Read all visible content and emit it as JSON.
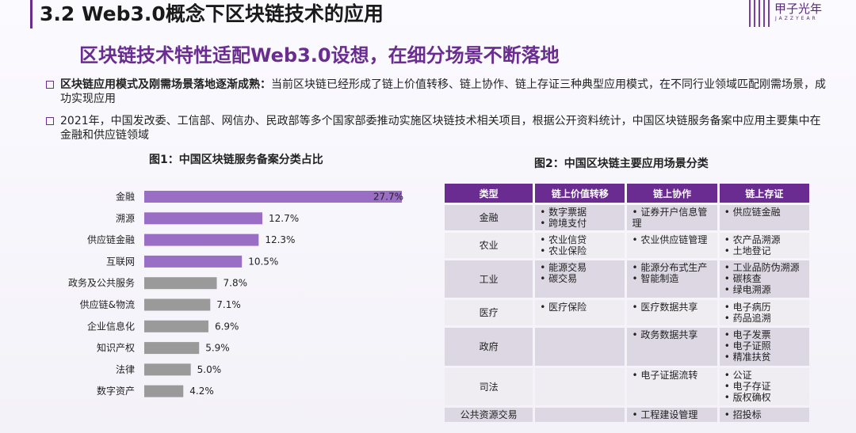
{
  "header": {
    "title": "3.2 Web3.0概念下区块链技术的应用",
    "logo_name": "甲子光年",
    "logo_sub": "JAZZYEAR"
  },
  "subtitle": "区块链技术特性适配Web3.0设想，在细分场景不断落地",
  "bullets": [
    {
      "bold": "区块链应用模式及刚需场景落地逐渐成熟：",
      "text": "当前区块链已经形成了链上价值转移、链上协作、链上存证三种典型应用模式，在不同行业领域匹配刚需场景，成功实现应用"
    },
    {
      "bold": "",
      "text": "2021年，中国发改委、工信部、网信办、民政部等多个国家部委推动实施区块链技术相关项目，根据公开资料统计，中国区块链服务备案中应用主要集中在金融和供应链领域"
    }
  ],
  "colors": {
    "accent": "#6a2c91",
    "bar_highlight": "#9b6ec5",
    "bar_other": "#9a9a9a"
  },
  "chart_data": {
    "type": "bar",
    "orientation": "horizontal",
    "title": "图1：中国区块链服务备案分类占比",
    "categories": [
      "金融",
      "溯源",
      "供应链金融",
      "互联网",
      "政务及公共服务",
      "供应链&物流",
      "企业信息化",
      "知识产权",
      "法律",
      "数字资产"
    ],
    "values": [
      27.7,
      12.7,
      12.3,
      10.5,
      7.8,
      7.1,
      6.9,
      5.9,
      5.0,
      4.2
    ],
    "labels": [
      "27.7%",
      "12.7%",
      "12.3%",
      "10.5%",
      "7.8%",
      "7.1%",
      "6.9%",
      "5.9%",
      "5.0%",
      "4.2%"
    ],
    "highlighted_count": 4,
    "unit": "%",
    "xlim": [
      0,
      27.7
    ]
  },
  "table": {
    "title": "图2：中国区块链主要应用场景分类",
    "headers": [
      "类型",
      "链上价值转移",
      "链上协作",
      "链上存证"
    ],
    "rows": [
      {
        "type": "金融",
        "c1": [
          "数字票据",
          "跨境支付"
        ],
        "c2": [
          "证券开户信息管理"
        ],
        "c3": [
          "供应链金融"
        ]
      },
      {
        "type": "农业",
        "c1": [
          "农业信贷",
          "农业保险"
        ],
        "c2": [
          "农业供应链管理"
        ],
        "c3": [
          "农产品溯源",
          "土地登记"
        ]
      },
      {
        "type": "工业",
        "c1": [
          "能源交易",
          "碳交易"
        ],
        "c2": [
          "能源分布式生产",
          "智能制造"
        ],
        "c3": [
          "工业品防伪溯源",
          "碳核查",
          "绿电溯源"
        ]
      },
      {
        "type": "医疗",
        "c1": [
          "医疗保险"
        ],
        "c2": [
          "医疗数据共享"
        ],
        "c3": [
          "电子病历",
          "药品追溯"
        ]
      },
      {
        "type": "政府",
        "c1": [],
        "c2": [
          "政务数据共享"
        ],
        "c3": [
          "电子发票",
          "电子证照",
          "精准扶贫"
        ]
      },
      {
        "type": "司法",
        "c1": [],
        "c2": [
          "电子证据流转"
        ],
        "c3": [
          "公证",
          "电子存证",
          "版权确权"
        ]
      },
      {
        "type": "公共资源交易",
        "c1": [],
        "c2": [
          "工程建设管理"
        ],
        "c3": [
          "招投标"
        ]
      }
    ]
  }
}
